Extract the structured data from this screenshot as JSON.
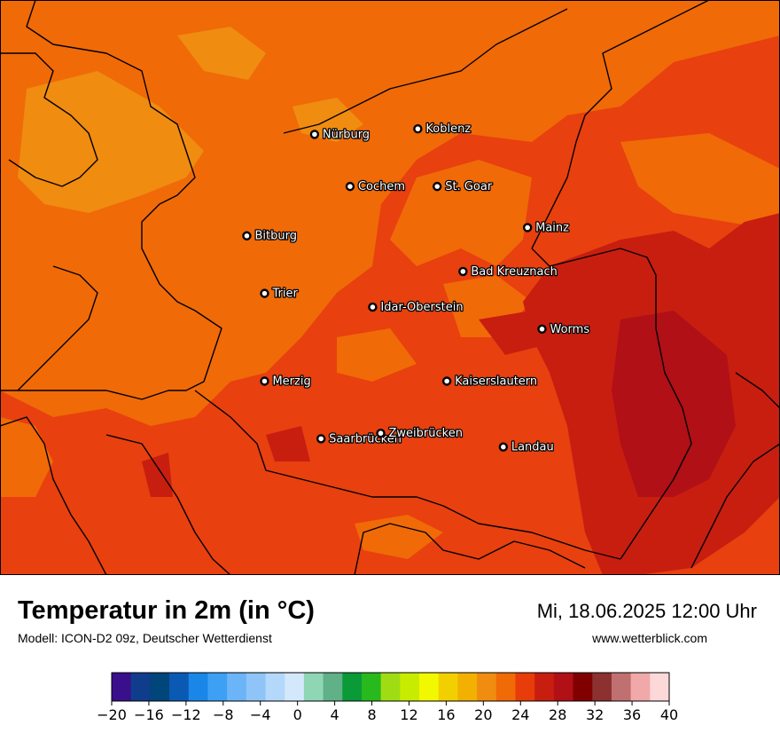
{
  "map": {
    "title": "Temperatur in 2m (in °C)",
    "subtitle": "Modell: ICON-D2 09z, Deutscher Wetterdienst",
    "datetime": "Mi, 18.06.2025 12:00 Uhr",
    "website": "www.wetterblick.com",
    "background_color": "#e8400f",
    "cities": [
      {
        "name": "Nürburg",
        "lon": 6.95,
        "lat": 50.34
      },
      {
        "name": "Koblenz",
        "lon": 7.59,
        "lat": 50.36
      },
      {
        "name": "Cochem",
        "lon": 7.17,
        "lat": 50.15
      },
      {
        "name": "St. Goar",
        "lon": 7.71,
        "lat": 50.15
      },
      {
        "name": "Mainz",
        "lon": 8.27,
        "lat": 50.0
      },
      {
        "name": "Bitburg",
        "lon": 6.53,
        "lat": 49.97
      },
      {
        "name": "Bad Kreuznach",
        "lon": 7.87,
        "lat": 49.84
      },
      {
        "name": "Trier",
        "lon": 6.64,
        "lat": 49.76
      },
      {
        "name": "Idar-Oberstein",
        "lon": 7.31,
        "lat": 49.71
      },
      {
        "name": "Worms",
        "lon": 8.36,
        "lat": 49.63
      },
      {
        "name": "Merzig",
        "lon": 6.64,
        "lat": 49.44
      },
      {
        "name": "Kaiserslautern",
        "lon": 7.77,
        "lat": 49.44
      },
      {
        "name": "Saarbrücken",
        "lon": 6.99,
        "lat": 49.23
      },
      {
        "name": "Zweibrücken",
        "lon": 7.36,
        "lat": 49.25
      },
      {
        "name": "Landau",
        "lon": 8.12,
        "lat": 49.2
      }
    ]
  },
  "colorbar": {
    "min": -20,
    "max": 40,
    "step": 2,
    "colors": [
      "#3a0f8c",
      "#0f3d8c",
      "#00467a",
      "#0a5ab4",
      "#1a86e8",
      "#3da0f5",
      "#6ab4f7",
      "#8ec4f8",
      "#b4d8fa",
      "#d4e8fc",
      "#8fd6b4",
      "#60b088",
      "#0a9a38",
      "#28b91c",
      "#a0dc14",
      "#c8ec00",
      "#f2f800",
      "#f2d000",
      "#f2b000",
      "#f08c10",
      "#f06a08",
      "#e83c0a",
      "#c81e10",
      "#b01016",
      "#800000",
      "#8c3030",
      "#c07070",
      "#f0a8a8",
      "#fcd8d8"
    ],
    "ticks": [
      "−20",
      "−16",
      "−12",
      "−8",
      "−4",
      "0",
      "4",
      "8",
      "12",
      "16",
      "20",
      "24",
      "28",
      "32",
      "36",
      "40"
    ]
  }
}
